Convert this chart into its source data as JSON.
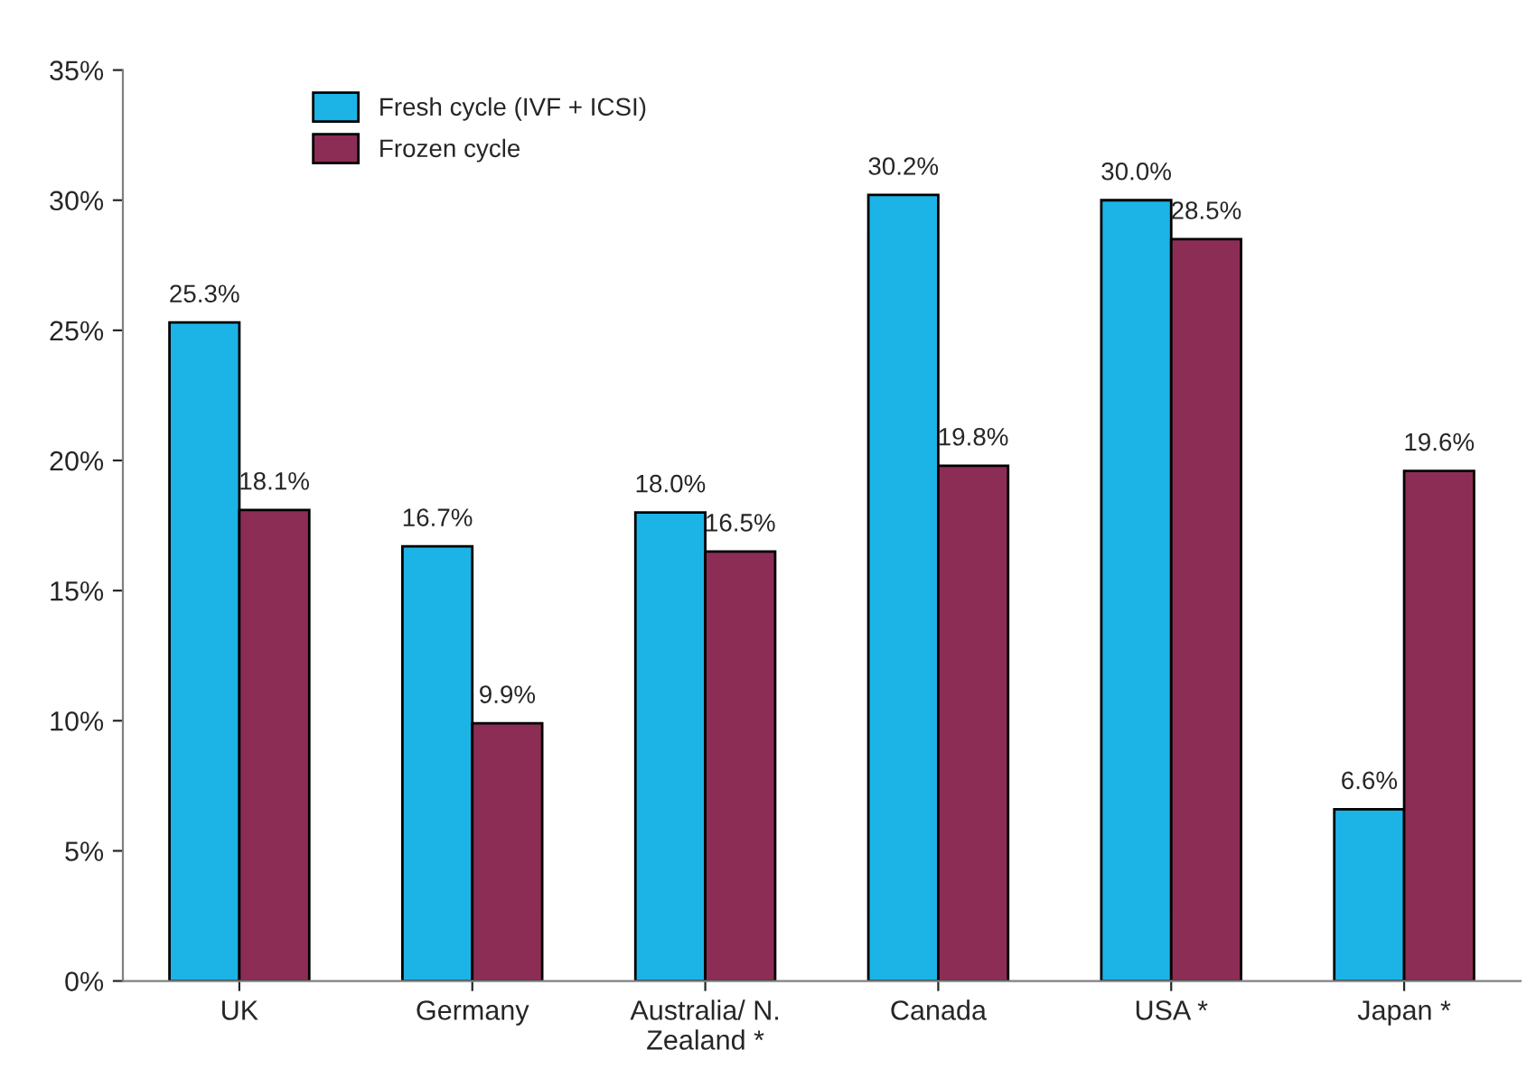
{
  "chart_data": {
    "type": "bar",
    "categories": [
      "UK",
      "Germany",
      "Australia/ N.\nZealand *",
      "Canada",
      "USA *",
      "Japan *"
    ],
    "series": [
      {
        "name": "Fresh cycle (IVF + ICSI)",
        "color": "#1cb4e6",
        "values": [
          25.3,
          16.7,
          18.0,
          30.2,
          30.0,
          6.6
        ],
        "value_labels": [
          "25.3%",
          "16.7%",
          "18.0%",
          "30.2%",
          "30.0%",
          "6.6%"
        ]
      },
      {
        "name": "Frozen cycle",
        "color": "#8c2d55",
        "values": [
          18.1,
          9.9,
          16.5,
          19.8,
          28.5,
          19.6
        ],
        "value_labels": [
          "18.1%",
          "9.9%",
          "16.5%",
          "19.8%",
          "28.5%",
          "19.6%"
        ]
      }
    ],
    "ylim": [
      0,
      35
    ],
    "yticks": [
      {
        "value": 0,
        "label": "0%"
      },
      {
        "value": 5,
        "label": "5%"
      },
      {
        "value": 10,
        "label": "10%"
      },
      {
        "value": 15,
        "label": "15%"
      },
      {
        "value": 20,
        "label": "20%"
      },
      {
        "value": 25,
        "label": "25%"
      },
      {
        "value": 30,
        "label": "30%"
      },
      {
        "value": 35,
        "label": "35%"
      }
    ],
    "legend": "top left",
    "grid": false
  }
}
